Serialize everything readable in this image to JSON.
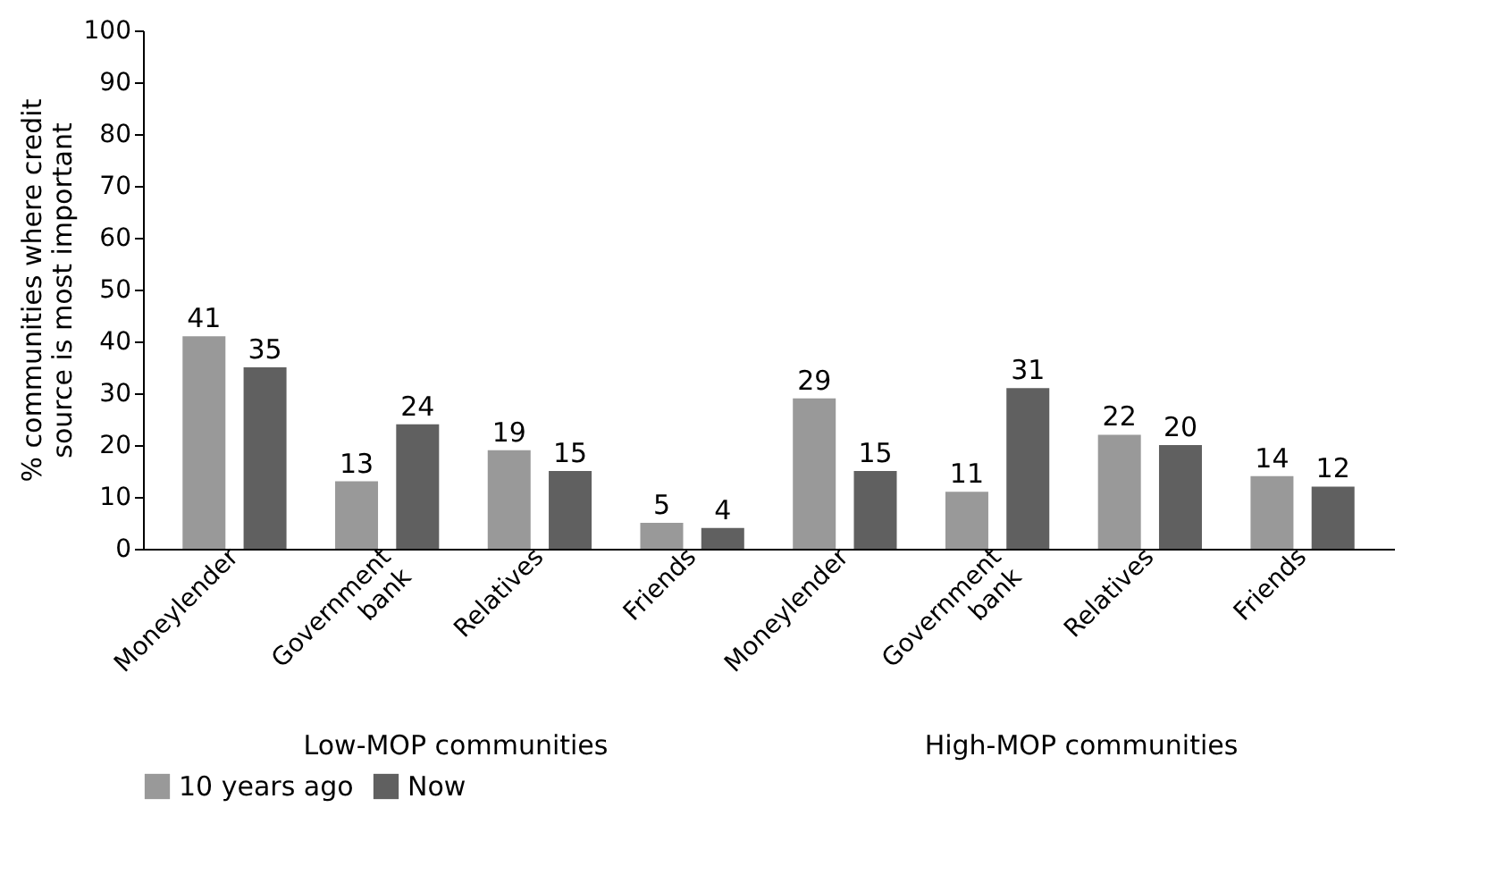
{
  "chart_data": {
    "type": "bar",
    "ylabel": "% communities where credit source is most important",
    "categories": [
      "Moneylender",
      "Government bank",
      "Relatives",
      "Friends",
      "Moneylender",
      "Government bank",
      "Relatives",
      "Friends"
    ],
    "series": [
      {
        "name": "10 years ago",
        "color": "#999999",
        "values": [
          41,
          13,
          19,
          5,
          29,
          11,
          22,
          14
        ]
      },
      {
        "name": "Now",
        "color": "#606060",
        "values": [
          35,
          24,
          15,
          4,
          15,
          31,
          20,
          12
        ]
      }
    ],
    "ylim": [
      0,
      100
    ],
    "yticks": [
      0,
      10,
      20,
      30,
      40,
      50,
      60,
      70,
      80,
      90,
      100
    ],
    "grid": false,
    "legend": "bottom",
    "data_labels": true,
    "annotations": [
      "Low-MOP communities",
      "High-MOP communities"
    ]
  }
}
